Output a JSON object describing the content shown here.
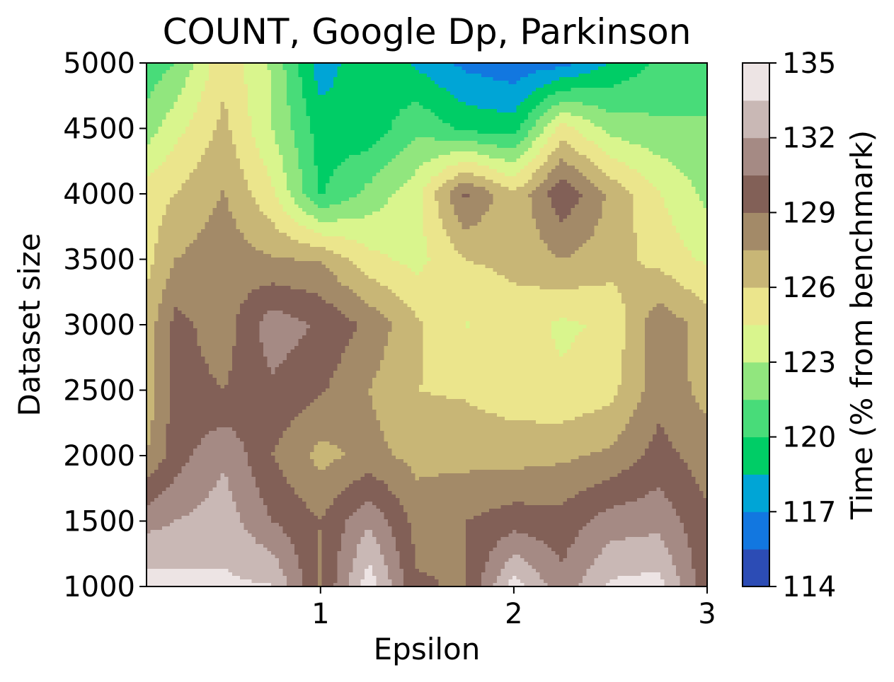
{
  "chart_data": {
    "type": "heatmap",
    "subtype": "filled-contour",
    "title": "COUNT, Google Dp, Parkinson",
    "xlabel": "Epsilon",
    "ylabel": "Dataset size",
    "colorbar_label": "Time (% from benchmark)",
    "xlim": [
      0.1,
      3
    ],
    "ylim": [
      1000,
      5000
    ],
    "x_ticks": [
      1,
      2,
      3
    ],
    "x_tick_labels": [
      "1",
      "2",
      "3"
    ],
    "y_ticks": [
      1000,
      1500,
      2000,
      2500,
      3000,
      3500,
      4000,
      4500,
      5000
    ],
    "y_tick_labels": [
      "1000",
      "1500",
      "2000",
      "2500",
      "3000",
      "3500",
      "4000",
      "4500",
      "5000"
    ],
    "colorbar_ticks": [
      114,
      117,
      120,
      123,
      126,
      129,
      132,
      135
    ],
    "colorbar_tick_labels": [
      "114",
      "117",
      "120",
      "123",
      "126",
      "129",
      "132",
      "135"
    ],
    "contour_levels": [
      114,
      115.5,
      117,
      118.5,
      120,
      121.5,
      123,
      124.5,
      126,
      127.5,
      129,
      130.5,
      132,
      133.5,
      135
    ],
    "colormap": [
      "#2c4cb5",
      "#1277e0",
      "#00a5d6",
      "#00cd66",
      "#48dc79",
      "#91e67e",
      "#d9f58d",
      "#ebe58c",
      "#c8b676",
      "#a38a68",
      "#826057",
      "#a58a84",
      "#c9b8b5",
      "#ede4e4"
    ],
    "x": [
      0.1,
      0.25,
      0.5,
      0.75,
      1.0,
      1.25,
      1.5,
      1.75,
      2.0,
      2.25,
      2.5,
      2.75,
      3.0
    ],
    "y": [
      1000,
      1500,
      2000,
      2500,
      3000,
      3500,
      4000,
      4500,
      5000
    ],
    "z": [
      [
        134.3,
        134.0,
        133.8,
        133.6,
        128.8,
        134.5,
        129.2,
        128.8,
        134.2,
        131.0,
        133.8,
        134.1,
        129.4
      ],
      [
        131.5,
        132.0,
        132.8,
        130.5,
        129.0,
        131.8,
        128.4,
        129.0,
        129.8,
        129.6,
        131.2,
        131.5,
        129.3
      ],
      [
        127.5,
        129.8,
        131.8,
        129.0,
        127.0,
        128.0,
        127.0,
        127.0,
        126.9,
        127.2,
        127.8,
        129.6,
        128.2
      ],
      [
        126.5,
        129.6,
        129.0,
        130.2,
        129.2,
        127.5,
        126.0,
        125.8,
        125.2,
        124.8,
        125.5,
        128.4,
        127.0
      ],
      [
        126.6,
        129.5,
        128.2,
        131.4,
        130.3,
        128.6,
        126.3,
        124.4,
        125.3,
        124.2,
        124.8,
        128.6,
        126.8
      ],
      [
        125.5,
        127.5,
        128.4,
        127.6,
        127.4,
        125.0,
        124.0,
        126.0,
        126.4,
        127.5,
        126.7,
        125.5,
        124.2
      ],
      [
        125.2,
        126.0,
        127.6,
        124.8,
        119.8,
        122.0,
        124.0,
        129.4,
        126.2,
        130.2,
        127.2,
        124.6,
        122.6
      ],
      [
        122.2,
        124.0,
        126.4,
        123.0,
        119.3,
        119.0,
        121.2,
        119.6,
        119.2,
        125.2,
        122.4,
        121.8,
        121.8
      ],
      [
        120.5,
        121.5,
        125.6,
        122.8,
        117.6,
        119.8,
        118.2,
        116.6,
        116.0,
        116.4,
        118.6,
        120.3,
        120.2
      ]
    ]
  }
}
